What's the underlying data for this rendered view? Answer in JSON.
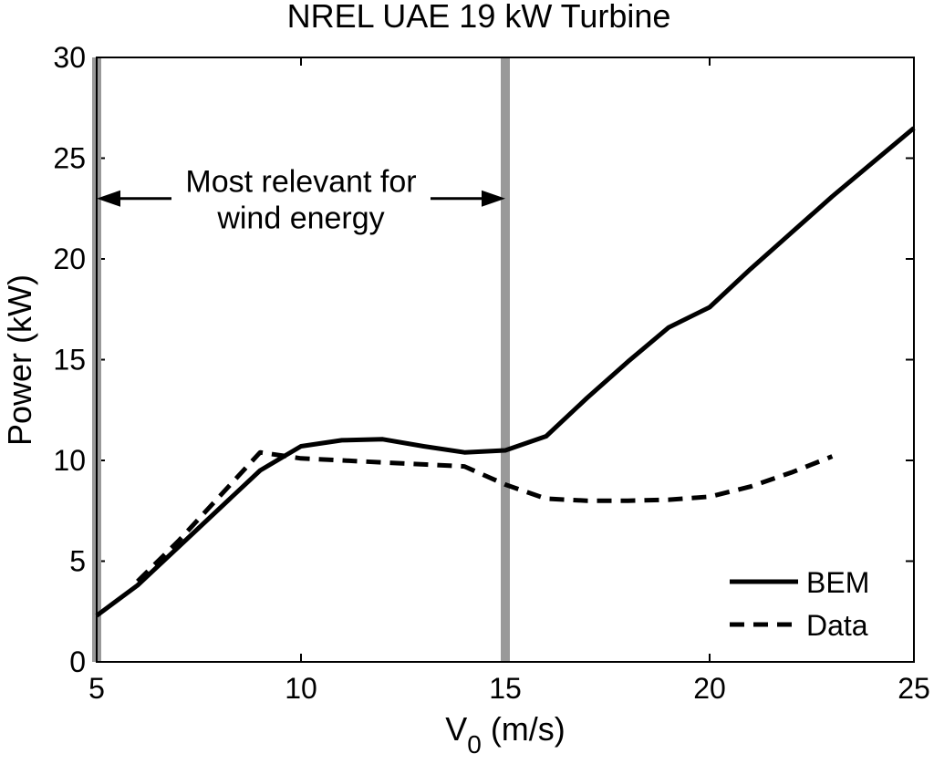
{
  "chart_data": {
    "type": "line",
    "title": "NREL UAE 19 kW Turbine",
    "xlabel": "V",
    "xlabel_sub": "0",
    "xlabel_unit": "(m/s)",
    "ylabel": "Power (kW)",
    "xlim": [
      5,
      25
    ],
    "ylim": [
      0,
      30
    ],
    "xticks": [
      5,
      10,
      15,
      20,
      25
    ],
    "yticks": [
      0,
      5,
      10,
      15,
      20,
      25,
      30
    ],
    "grid": false,
    "legend_position": "bottom-right",
    "series": [
      {
        "name": "BEM",
        "style": "solid",
        "color": "#000000",
        "x": [
          5,
          6,
          7,
          8,
          9,
          10,
          11,
          12,
          13,
          14,
          15,
          16,
          17,
          18,
          19,
          20,
          21,
          22,
          23,
          24,
          25
        ],
        "y": [
          2.3,
          3.8,
          5.7,
          7.6,
          9.5,
          10.7,
          11.0,
          11.05,
          10.7,
          10.4,
          10.5,
          11.2,
          13.1,
          14.9,
          16.6,
          17.6,
          19.5,
          21.3,
          23.1,
          24.8,
          26.5
        ]
      },
      {
        "name": "Data",
        "style": "dashed",
        "color": "#000000",
        "x": [
          6,
          7,
          8,
          9,
          10,
          11,
          12,
          13,
          14,
          15,
          16,
          17,
          18,
          19,
          20,
          21,
          22,
          23
        ],
        "y": [
          4.0,
          6.0,
          8.2,
          10.4,
          10.1,
          10.0,
          9.9,
          9.8,
          9.7,
          8.8,
          8.1,
          8.0,
          8.0,
          8.05,
          8.2,
          8.7,
          9.4,
          10.2
        ]
      }
    ],
    "vertical_markers": [
      {
        "x": 5,
        "color": "#999999"
      },
      {
        "x": 15,
        "color": "#999999"
      }
    ],
    "annotation": {
      "line1": "Most relevant for",
      "line2": "wind energy",
      "arrow_from_x": 5,
      "arrow_to_x": 15,
      "arrow_y": 23
    }
  }
}
